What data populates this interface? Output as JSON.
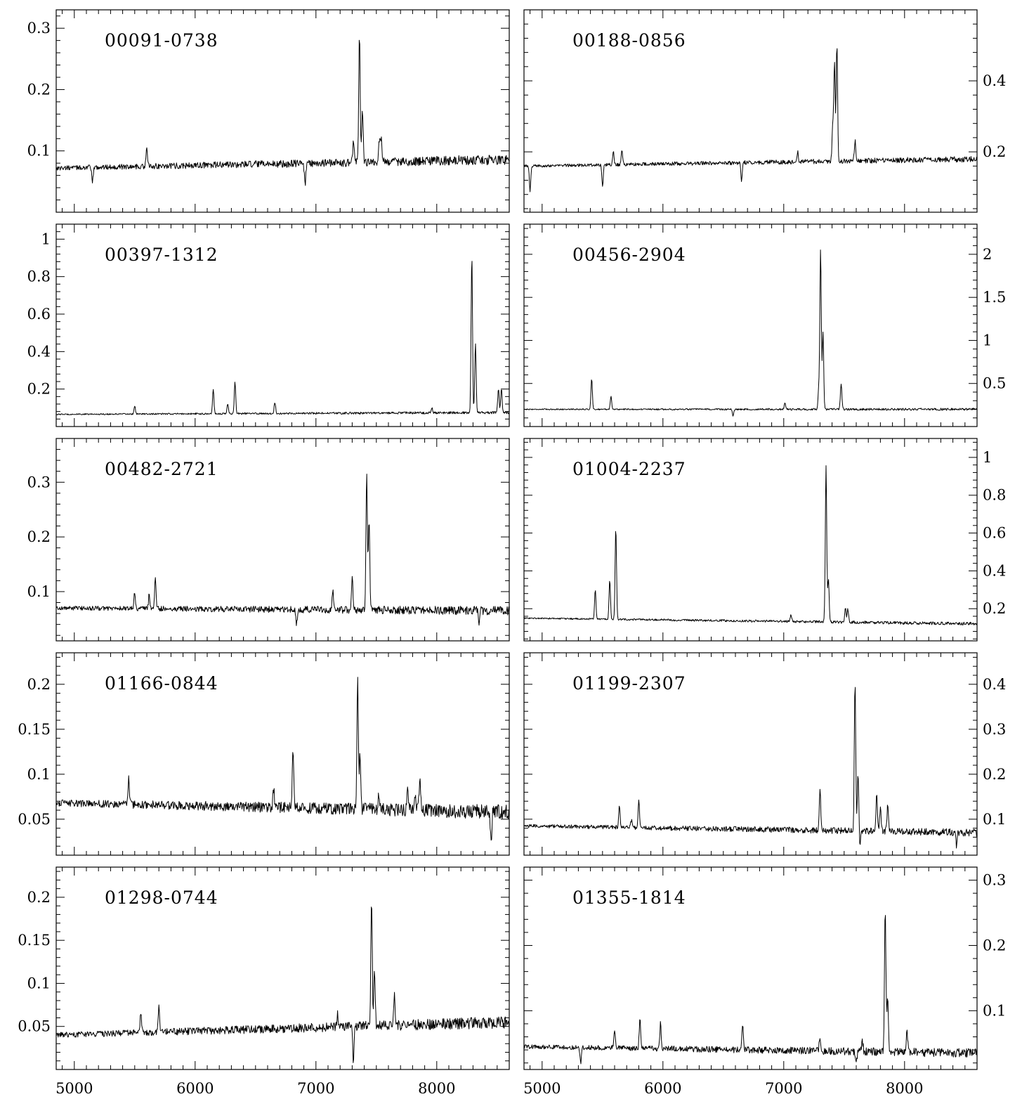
{
  "chart_data": {
    "type": "line",
    "layout": "5x2 grid of spectra panels sharing the wavelength axis",
    "x_ticks": [
      5000,
      6000,
      7000,
      8000
    ],
    "xlim": [
      4850,
      8600
    ],
    "panels": [
      {
        "label": "00091-0738",
        "ylim": [
          0.0,
          0.33
        ],
        "yticks": [
          0.1,
          0.2,
          0.3
        ],
        "ytick_labels": [
          "0.1",
          "0.2",
          "0.3"
        ],
        "baseline": [
          0.072,
          0.086
        ],
        "noise": 0.006,
        "lines": [
          {
            "x": 5600,
            "y": 0.105
          },
          {
            "x": 7310,
            "y": 0.115
          },
          {
            "x": 7360,
            "y": 0.29
          },
          {
            "x": 7385,
            "y": 0.165
          },
          {
            "x": 7525,
            "y": 0.12
          },
          {
            "x": 7540,
            "y": 0.12
          }
        ],
        "absorptions": [
          {
            "x": 5150,
            "y": 0.048
          },
          {
            "x": 6910,
            "y": 0.046
          }
        ]
      },
      {
        "label": "00188-0856",
        "ylim": [
          0.03,
          0.6
        ],
        "yticks": [
          0.2,
          0.4
        ],
        "ytick_labels": [
          "0.2",
          "0.4"
        ],
        "baseline": [
          0.16,
          0.18
        ],
        "noise": 0.006,
        "lines": [
          {
            "x": 5590,
            "y": 0.2
          },
          {
            "x": 5660,
            "y": 0.205
          },
          {
            "x": 7115,
            "y": 0.2
          },
          {
            "x": 7405,
            "y": 0.27
          },
          {
            "x": 7420,
            "y": 0.45
          },
          {
            "x": 7440,
            "y": 0.5
          },
          {
            "x": 7590,
            "y": 0.23
          }
        ],
        "absorptions": [
          {
            "x": 5500,
            "y": 0.1
          },
          {
            "x": 6650,
            "y": 0.12
          },
          {
            "x": 4900,
            "y": 0.09
          }
        ]
      },
      {
        "label": "00397-1312",
        "ylim": [
          0.0,
          1.08
        ],
        "yticks": [
          0.2,
          0.4,
          0.6,
          0.8,
          1.0
        ],
        "ytick_labels": [
          "0.2",
          "0.4",
          "0.6",
          "0.8",
          "1"
        ],
        "baseline": [
          0.065,
          0.075
        ],
        "noise": 0.005,
        "lines": [
          {
            "x": 5500,
            "y": 0.11
          },
          {
            "x": 6150,
            "y": 0.2
          },
          {
            "x": 6270,
            "y": 0.12
          },
          {
            "x": 6330,
            "y": 0.24
          },
          {
            "x": 6660,
            "y": 0.13
          },
          {
            "x": 7960,
            "y": 0.1
          },
          {
            "x": 8290,
            "y": 0.91
          },
          {
            "x": 8320,
            "y": 0.44
          },
          {
            "x": 8510,
            "y": 0.2
          },
          {
            "x": 8535,
            "y": 0.2
          }
        ],
        "absorptions": []
      },
      {
        "label": "00456-2904",
        "ylim": [
          0.0,
          2.35
        ],
        "yticks": [
          0.5,
          1.0,
          1.5,
          2.0
        ],
        "ytick_labels": [
          "0.5",
          "1",
          "1.5",
          "2"
        ],
        "baseline": [
          0.2,
          0.2
        ],
        "noise": 0.01,
        "lines": [
          {
            "x": 5410,
            "y": 0.55
          },
          {
            "x": 5570,
            "y": 0.35
          },
          {
            "x": 7010,
            "y": 0.27
          },
          {
            "x": 7290,
            "y": 0.45
          },
          {
            "x": 7305,
            "y": 2.05
          },
          {
            "x": 7325,
            "y": 1.1
          },
          {
            "x": 7475,
            "y": 0.5
          }
        ],
        "absorptions": [
          {
            "x": 6580,
            "y": 0.12
          }
        ]
      },
      {
        "label": "00482-2721",
        "ylim": [
          0.01,
          0.38
        ],
        "yticks": [
          0.1,
          0.2,
          0.3
        ],
        "ytick_labels": [
          "0.1",
          "0.2",
          "0.3"
        ],
        "baseline": [
          0.07,
          0.065
        ],
        "noise": 0.006,
        "lines": [
          {
            "x": 5500,
            "y": 0.1
          },
          {
            "x": 5620,
            "y": 0.095
          },
          {
            "x": 5670,
            "y": 0.125
          },
          {
            "x": 7140,
            "y": 0.1
          },
          {
            "x": 7300,
            "y": 0.125
          },
          {
            "x": 7420,
            "y": 0.32
          },
          {
            "x": 7440,
            "y": 0.23
          }
        ],
        "absorptions": [
          {
            "x": 6840,
            "y": 0.04
          },
          {
            "x": 8350,
            "y": 0.035
          }
        ]
      },
      {
        "label": "01004-2237",
        "ylim": [
          0.03,
          1.1
        ],
        "yticks": [
          0.2,
          0.4,
          0.6,
          0.8,
          1.0
        ],
        "ytick_labels": [
          "0.2",
          "0.4",
          "0.6",
          "0.8",
          "1"
        ],
        "baseline": [
          0.15,
          0.12
        ],
        "noise": 0.006,
        "lines": [
          {
            "x": 5440,
            "y": 0.3
          },
          {
            "x": 5560,
            "y": 0.35
          },
          {
            "x": 5610,
            "y": 0.63
          },
          {
            "x": 7060,
            "y": 0.17
          },
          {
            "x": 7350,
            "y": 0.95
          },
          {
            "x": 7370,
            "y": 0.35
          },
          {
            "x": 7510,
            "y": 0.2
          },
          {
            "x": 7530,
            "y": 0.2
          }
        ],
        "absorptions": []
      },
      {
        "label": "01166-0844",
        "ylim": [
          0.01,
          0.235
        ],
        "yticks": [
          0.05,
          0.1,
          0.15,
          0.2
        ],
        "ytick_labels": [
          "0.05",
          "0.1",
          "0.15",
          "0.2"
        ],
        "baseline": [
          0.068,
          0.058
        ],
        "noise": 0.006,
        "lines": [
          {
            "x": 5450,
            "y": 0.095
          },
          {
            "x": 6650,
            "y": 0.085
          },
          {
            "x": 6810,
            "y": 0.13
          },
          {
            "x": 7345,
            "y": 0.205
          },
          {
            "x": 7365,
            "y": 0.12
          },
          {
            "x": 7520,
            "y": 0.08
          },
          {
            "x": 7760,
            "y": 0.085
          },
          {
            "x": 7820,
            "y": 0.08
          },
          {
            "x": 7860,
            "y": 0.095
          }
        ],
        "absorptions": [
          {
            "x": 8450,
            "y": 0.025
          }
        ]
      },
      {
        "label": "01199-2307",
        "ylim": [
          0.02,
          0.47
        ],
        "yticks": [
          0.1,
          0.2,
          0.3,
          0.4
        ],
        "ytick_labels": [
          "0.1",
          "0.2",
          "0.3",
          "0.4"
        ],
        "baseline": [
          0.085,
          0.07
        ],
        "noise": 0.006,
        "lines": [
          {
            "x": 5640,
            "y": 0.13
          },
          {
            "x": 5740,
            "y": 0.1
          },
          {
            "x": 5800,
            "y": 0.14
          },
          {
            "x": 7300,
            "y": 0.17
          },
          {
            "x": 7590,
            "y": 0.4
          },
          {
            "x": 7615,
            "y": 0.2
          },
          {
            "x": 7770,
            "y": 0.16
          },
          {
            "x": 7800,
            "y": 0.13
          },
          {
            "x": 7860,
            "y": 0.13
          }
        ],
        "absorptions": [
          {
            "x": 7630,
            "y": 0.045
          },
          {
            "x": 8430,
            "y": 0.04
          }
        ]
      },
      {
        "label": "01298-0744",
        "ylim": [
          0.0,
          0.235
        ],
        "yticks": [
          0.05,
          0.1,
          0.15,
          0.2
        ],
        "ytick_labels": [
          "0.05",
          "0.1",
          "0.15",
          "0.2"
        ],
        "baseline": [
          0.04,
          0.055
        ],
        "noise": 0.005,
        "lines": [
          {
            "x": 5550,
            "y": 0.065
          },
          {
            "x": 5700,
            "y": 0.075
          },
          {
            "x": 7180,
            "y": 0.065
          },
          {
            "x": 7460,
            "y": 0.2
          },
          {
            "x": 7485,
            "y": 0.117
          },
          {
            "x": 7650,
            "y": 0.085
          }
        ],
        "absorptions": [
          {
            "x": 7310,
            "y": 0.007
          }
        ]
      },
      {
        "label": "01355-1814",
        "ylim": [
          0.01,
          0.32
        ],
        "yticks": [
          0.1,
          0.2,
          0.3
        ],
        "ytick_labels": [
          "0.1",
          "0.2",
          "0.3"
        ],
        "baseline": [
          0.045,
          0.035
        ],
        "noise": 0.005,
        "lines": [
          {
            "x": 5600,
            "y": 0.07
          },
          {
            "x": 5810,
            "y": 0.09
          },
          {
            "x": 5980,
            "y": 0.08
          },
          {
            "x": 6660,
            "y": 0.075
          },
          {
            "x": 7300,
            "y": 0.06
          },
          {
            "x": 7650,
            "y": 0.055
          },
          {
            "x": 7840,
            "y": 0.26
          },
          {
            "x": 7860,
            "y": 0.12
          },
          {
            "x": 8020,
            "y": 0.07
          }
        ],
        "absorptions": [
          {
            "x": 5320,
            "y": 0.02
          },
          {
            "x": 7600,
            "y": 0.02
          }
        ]
      }
    ]
  }
}
